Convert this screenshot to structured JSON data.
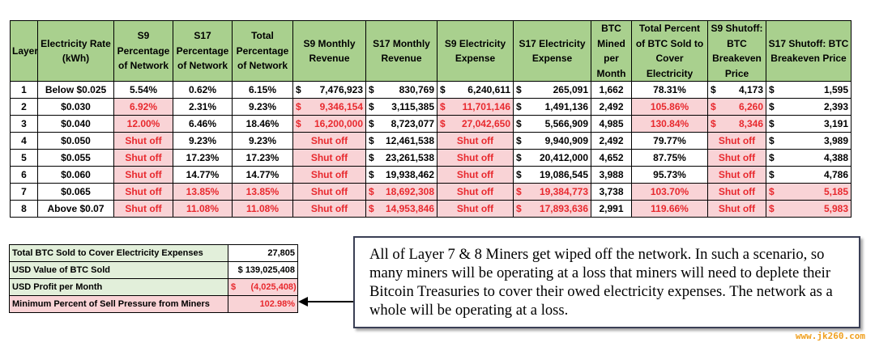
{
  "table": {
    "headers": [
      "Layer",
      "Electricity Rate (kWh)",
      "S9 Percentage of Network",
      "S17 Percentage of Network",
      "Total Percentage of Network",
      "S9 Monthly Revenue",
      "S17 Monthly Revenue",
      "S9 Electricity Expense",
      "S17 Electricity Expense",
      "BTC Mined per Month",
      "Total Percent of BTC Sold to Cover Electricity",
      "S9 Shutoff: BTC Breakeven Price",
      "S17 Shutoff: BTC Breakeven Price"
    ],
    "currency_symbol": "$",
    "rows": [
      {
        "layer": "1",
        "rate": "Below $0.025",
        "s9_pct": "5.54%",
        "s17_pct": "0.62%",
        "total_pct": "6.15%",
        "s9_rev": "7,476,923",
        "s17_rev": "830,769",
        "s9_exp": "6,240,611",
        "s17_exp": "265,091",
        "btc": "1,662",
        "sold_pct": "78.31%",
        "s9_be": "4,173",
        "s17_be": "1,595"
      },
      {
        "layer": "2",
        "rate": "$0.030",
        "s9_pct": "6.92%",
        "s17_pct": "2.31%",
        "total_pct": "9.23%",
        "s9_rev": "9,346,154",
        "s17_rev": "3,115,385",
        "s9_exp": "11,701,146",
        "s17_exp": "1,491,136",
        "btc": "2,492",
        "sold_pct": "105.86%",
        "s9_be": "6,260",
        "s17_be": "2,393"
      },
      {
        "layer": "3",
        "rate": "$0.040",
        "s9_pct": "12.00%",
        "s17_pct": "6.46%",
        "total_pct": "18.46%",
        "s9_rev": "16,200,000",
        "s17_rev": "8,723,077",
        "s9_exp": "27,042,650",
        "s17_exp": "5,566,909",
        "btc": "4,985",
        "sold_pct": "130.84%",
        "s9_be": "8,346",
        "s17_be": "3,191"
      },
      {
        "layer": "4",
        "rate": "$0.050",
        "s9_pct": "Shut off",
        "s17_pct": "9.23%",
        "total_pct": "9.23%",
        "s9_rev": "Shut off",
        "s17_rev": "12,461,538",
        "s9_exp": "Shut off",
        "s17_exp": "9,940,909",
        "btc": "2,492",
        "sold_pct": "79.77%",
        "s9_be": "Shut off",
        "s17_be": "3,989"
      },
      {
        "layer": "5",
        "rate": "$0.055",
        "s9_pct": "Shut off",
        "s17_pct": "17.23%",
        "total_pct": "17.23%",
        "s9_rev": "Shut off",
        "s17_rev": "23,261,538",
        "s9_exp": "Shut off",
        "s17_exp": "20,412,000",
        "btc": "4,652",
        "sold_pct": "87.75%",
        "s9_be": "Shut off",
        "s17_be": "4,388"
      },
      {
        "layer": "6",
        "rate": "$0.060",
        "s9_pct": "Shut off",
        "s17_pct": "14.77%",
        "total_pct": "14.77%",
        "s9_rev": "Shut off",
        "s17_rev": "19,938,462",
        "s9_exp": "Shut off",
        "s17_exp": "19,086,545",
        "btc": "3,988",
        "sold_pct": "95.73%",
        "s9_be": "Shut off",
        "s17_be": "4,786"
      },
      {
        "layer": "7",
        "rate": "$0.065",
        "s9_pct": "Shut off",
        "s17_pct": "13.85%",
        "total_pct": "13.85%",
        "s9_rev": "Shut off",
        "s17_rev": "18,692,308",
        "s9_exp": "Shut off",
        "s17_exp": "19,384,773",
        "btc": "3,738",
        "sold_pct": "103.70%",
        "s9_be": "Shut off",
        "s17_be": "5,185"
      },
      {
        "layer": "8",
        "rate": "Above $0.07",
        "s9_pct": "Shut off",
        "s17_pct": "11.08%",
        "total_pct": "11.08%",
        "s9_rev": "Shut off",
        "s17_rev": "14,953,846",
        "s9_exp": "Shut off",
        "s17_exp": "17,893,636",
        "btc": "2,991",
        "sold_pct": "119.66%",
        "s9_be": "Shut off",
        "s17_be": "5,983"
      }
    ],
    "highlighted": {
      "1": [],
      "2": [
        "s9_pct",
        "s9_rev",
        "s9_exp",
        "sold_pct",
        "s9_be"
      ],
      "3": [
        "s9_pct",
        "s9_rev",
        "s9_exp",
        "sold_pct",
        "s9_be"
      ],
      "4": [
        "s9_pct",
        "s9_rev",
        "s9_exp",
        "s9_be"
      ],
      "5": [
        "s9_pct",
        "s9_rev",
        "s9_exp",
        "s9_be"
      ],
      "6": [
        "s9_pct",
        "s9_rev",
        "s9_exp",
        "s9_be"
      ],
      "7": [
        "s9_pct",
        "s17_pct",
        "total_pct",
        "s9_rev",
        "s17_rev",
        "s9_exp",
        "s17_exp",
        "sold_pct",
        "s9_be",
        "s17_be"
      ],
      "8": [
        "s9_pct",
        "s17_pct",
        "total_pct",
        "s9_rev",
        "s17_rev",
        "s9_exp",
        "s17_exp",
        "sold_pct",
        "s9_be",
        "s17_be"
      ]
    },
    "header_color": "#a9d08e",
    "highlight_bg": "#f9d3d6",
    "highlight_text": "#e8292e"
  },
  "summary": {
    "rows": [
      {
        "label": "Total BTC Sold to Cover Electricity Expenses",
        "value": "27,805"
      },
      {
        "label": "USD Value of BTC Sold",
        "value": "$ 139,025,408"
      },
      {
        "label": "USD Profit per Month",
        "value": "$      (4,025,408)"
      },
      {
        "label": "Minimum Percent of Sell Pressure from Miners",
        "value": "102.98%"
      }
    ]
  },
  "callout": {
    "text": "All of Layer 7 & 8 Miners get wiped off the network. In such a scenario, so many miners will be operating at a loss that miners will need to deplete their Bitcoin Treasuries to cover their owed electricity expenses. The network as a whole will be operating at a loss."
  },
  "watermark": "www.jk260.com"
}
